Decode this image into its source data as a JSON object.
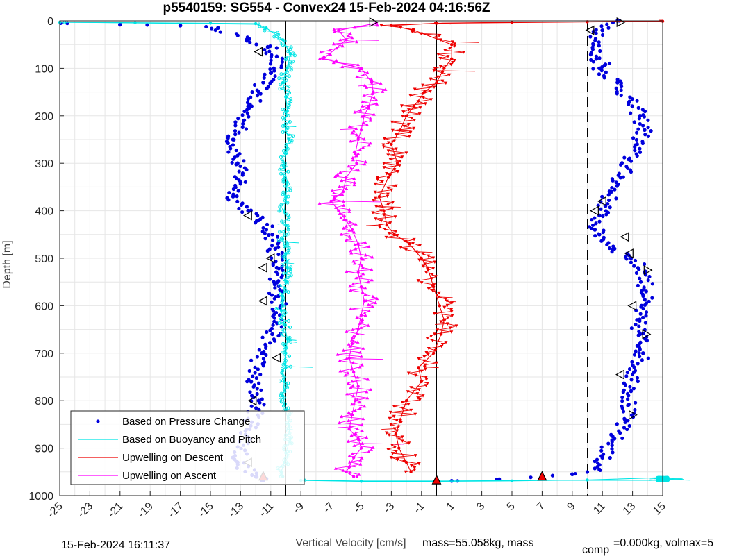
{
  "chart_data": {
    "type": "scatter",
    "title": "p5540159: SG554 - Convex24 15-Feb-2024 04:16:56Z",
    "xlabel": "Vertical Velocity [cm/s]",
    "ylabel": "Depth [m]",
    "xlim": [
      -25,
      15
    ],
    "ylim": [
      0,
      1000
    ],
    "y_reversed": true,
    "grid": true,
    "x_ticks": [
      -25,
      -23,
      -21,
      -19,
      -17,
      -15,
      -13,
      -11,
      -9,
      -7,
      -5,
      -3,
      -1,
      1,
      3,
      5,
      7,
      9,
      11,
      13,
      15
    ],
    "x_tick_labels": [
      "-25",
      "-23",
      "-21",
      "-19",
      "-17",
      "-15",
      "-13",
      "-11",
      "-9",
      "-7",
      "-5",
      "-3",
      "-1",
      "1",
      "3",
      "5",
      "7",
      "9",
      "11",
      "13",
      "15"
    ],
    "y_ticks": [
      0,
      100,
      200,
      300,
      400,
      500,
      600,
      700,
      800,
      900,
      1000
    ],
    "y_tick_labels": [
      "0",
      "100",
      "200",
      "300",
      "400",
      "500",
      "600",
      "700",
      "800",
      "900",
      "1000"
    ],
    "reference_lines": [
      {
        "x": -10,
        "style": "solid",
        "color": "#000000"
      },
      {
        "x": 0,
        "style": "solid",
        "color": "#000000"
      },
      {
        "x": 10,
        "style": "dashed",
        "color": "#000000"
      }
    ],
    "legend": {
      "position": "bottom-left",
      "entries": [
        {
          "label": "Based on Pressure Change",
          "color": "#0000dd",
          "marker": "dot"
        },
        {
          "label": "Based on Buoyancy and Pitch",
          "color": "#00e5e5",
          "marker": "line"
        },
        {
          "label": "Upwelling on Descent",
          "color": "#ee0000",
          "marker": "line"
        },
        {
          "label": "Upwelling on Ascent",
          "color": "#ff00ff",
          "marker": "line"
        }
      ]
    },
    "series": [
      {
        "name": "Based on Pressure Change",
        "color": "#0000dd",
        "branch": "descent",
        "x": [
          -24.5,
          -21,
          -17,
          -14.5,
          -12.6,
          -11.2,
          -10.6,
          -10.8,
          -11.0,
          -11.5,
          -11.8,
          -12.5,
          -12.8,
          -13.5,
          -13.2,
          -13.0,
          -13.5,
          -12.5,
          -11.8,
          -10.9,
          -10.7,
          -10.6,
          -10.8,
          -10.5,
          -10.4,
          -10.9,
          -11.6,
          -12.3,
          -11.8,
          -12.4,
          -13.2,
          -12.0,
          -11.6
        ],
        "y": [
          5,
          8,
          10,
          15,
          40,
          55,
          75,
          100,
          110,
          130,
          150,
          180,
          210,
          250,
          300,
          340,
          370,
          400,
          420,
          450,
          480,
          520,
          550,
          580,
          620,
          660,
          700,
          760,
          800,
          860,
          930,
          960,
          968
        ]
      },
      {
        "name": "Based on Pressure Change",
        "color": "#0000dd",
        "branch": "ascent",
        "x": [
          12.0,
          11.0,
          10.4,
          10.6,
          11.2,
          10.8,
          12.0,
          12.8,
          13.5,
          13.8,
          13.3,
          12.8,
          12.2,
          11.6,
          11.2,
          10.8,
          10.5,
          10.8,
          11.8,
          12.9,
          13.8,
          13.9,
          13.6,
          13.3,
          13.5,
          13.7,
          13.1,
          12.9,
          12.7,
          12.5,
          11.8,
          11.0,
          10.8,
          9.0,
          7.0,
          4.0,
          1.0
        ],
        "y": [
          0,
          20,
          50,
          80,
          92,
          100,
          130,
          170,
          200,
          230,
          260,
          290,
          330,
          360,
          390,
          410,
          440,
          450,
          480,
          500,
          530,
          570,
          600,
          630,
          660,
          700,
          740,
          780,
          810,
          840,
          880,
          920,
          945,
          955,
          960,
          966,
          969
        ]
      },
      {
        "name": "Based on Buoyancy and Pitch",
        "color": "#00e5e5",
        "x": [
          -25,
          -20,
          -15,
          -12,
          -11.3,
          -10.2,
          -9.7,
          -9.9,
          -10.2,
          -10.0,
          -9.9,
          -10.1,
          -9.8,
          -10.0,
          -10.1,
          -9.9,
          -10.0,
          -10.1,
          -10.0,
          -10.2,
          -10.0,
          -9.9,
          -10.0,
          -10.2,
          -10.3,
          -10.1,
          -9.9,
          -10.0,
          -10.0,
          -10.1,
          -10.2,
          -10.0,
          -9.8,
          -9.7,
          -10.0,
          -10.1,
          -10.3,
          -10.2
        ],
        "y": [
          3,
          4,
          5,
          6,
          15,
          40,
          70,
          100,
          130,
          160,
          190,
          220,
          250,
          280,
          310,
          340,
          370,
          400,
          430,
          460,
          490,
          520,
          550,
          580,
          610,
          640,
          670,
          700,
          730,
          760,
          790,
          820,
          850,
          880,
          910,
          930,
          950,
          960
        ]
      },
      {
        "name": "Based on Buoyancy and Pitch",
        "color": "#00e5e5",
        "branch": "surface",
        "x": [
          -9,
          -5,
          0,
          5,
          10,
          15
        ],
        "y": [
          968,
          970,
          970,
          969,
          967,
          962
        ]
      },
      {
        "name": "Upwelling on Descent",
        "color": "#ee0000",
        "x": [
          15,
          10,
          5,
          0,
          -3,
          -1.5,
          1.0,
          1.0,
          0.5,
          0,
          -0.8,
          -1.5,
          -2.0,
          -2.4,
          -3.0,
          -2.6,
          -3.2,
          -3.8,
          -3.5,
          -3.3,
          -2.8,
          -1.8,
          -1.0,
          -0.6,
          -0.2,
          0.2,
          0.5,
          0.3,
          -0.2,
          -1.2,
          -1.0,
          -2.0,
          -2.4,
          -2.7,
          -2.5,
          -2.0,
          -1.7
        ],
        "y": [
          1,
          2,
          3,
          5,
          10,
          20,
          50,
          80,
          100,
          130,
          150,
          180,
          200,
          230,
          260,
          300,
          330,
          370,
          400,
          430,
          450,
          470,
          500,
          520,
          560,
          600,
          630,
          660,
          700,
          730,
          760,
          800,
          840,
          870,
          900,
          930,
          950
        ]
      },
      {
        "name": "Upwelling on Ascent",
        "color": "#ff00ff",
        "x": [
          -4.0,
          -6.5,
          -6.0,
          -7.5,
          -5.0,
          -4.3,
          -4.2,
          -4.5,
          -4.8,
          -5.0,
          -5.2,
          -5.4,
          -5.3,
          -6.0,
          -6.2,
          -7.0,
          -6.5,
          -6.0,
          -5.6,
          -5.2,
          -5.0,
          -5.2,
          -5.0,
          -4.8,
          -5.0,
          -5.2,
          -5.6,
          -5.8,
          -5.5,
          -5.2,
          -5.4,
          -5.6,
          -5.8,
          -5.2,
          -5.0,
          -5.5,
          -5.8,
          -6.0,
          -5.5
        ],
        "y": [
          5,
          20,
          40,
          80,
          100,
          130,
          150,
          180,
          200,
          230,
          250,
          280,
          300,
          330,
          360,
          380,
          400,
          420,
          440,
          470,
          500,
          530,
          560,
          590,
          620,
          650,
          680,
          710,
          740,
          770,
          800,
          830,
          860,
          880,
          900,
          920,
          940,
          950,
          960
        ]
      }
    ],
    "annotations": [
      {
        "marker": "triangle-right",
        "x": -4.2,
        "y": 3
      },
      {
        "marker": "triangle-right",
        "x": 12.2,
        "y": 3
      },
      {
        "marker": "triangle-left",
        "x": -11.8,
        "y": 65
      },
      {
        "marker": "triangle-left",
        "x": -12.5,
        "y": 410
      },
      {
        "marker": "triangle-left",
        "x": -11.0,
        "y": 500
      },
      {
        "marker": "triangle-left",
        "x": -11.5,
        "y": 590
      },
      {
        "marker": "triangle-left",
        "x": -11.5,
        "y": 520
      },
      {
        "marker": "triangle-left",
        "x": -10.6,
        "y": 710
      },
      {
        "marker": "triangle-left",
        "x": -12.2,
        "y": 800
      },
      {
        "marker": "triangle-left",
        "x": -12.5,
        "y": 930
      },
      {
        "marker": "triangle-left",
        "x": 10.2,
        "y": 20
      },
      {
        "marker": "triangle-left",
        "x": 11.0,
        "y": 380
      },
      {
        "marker": "triangle-left",
        "x": 10.5,
        "y": 400
      },
      {
        "marker": "triangle-left",
        "x": 12.5,
        "y": 455
      },
      {
        "marker": "triangle-left",
        "x": 12.8,
        "y": 490
      },
      {
        "marker": "triangle-left",
        "x": 13.0,
        "y": 600
      },
      {
        "marker": "triangle-left",
        "x": 12.2,
        "y": 745
      },
      {
        "marker": "triangle-right",
        "x": 14.0,
        "y": 525
      },
      {
        "marker": "triangle-right",
        "x": 13.9,
        "y": 660
      },
      {
        "marker": "triangle-right",
        "x": 13.0,
        "y": 830
      },
      {
        "marker": "triangle-up-red",
        "x": -11.5,
        "y": 960
      },
      {
        "marker": "triangle-up-red",
        "x": 0.0,
        "y": 968
      },
      {
        "marker": "triangle-up-red",
        "x": 7.0,
        "y": 960
      }
    ]
  },
  "footer": {
    "timestamp": "15-Feb-2024 16:11:37",
    "mass_text": "mass=55.058kg, mass",
    "subscript": "comp",
    "volmax_text": "=0.000kg, volmax=5"
  }
}
